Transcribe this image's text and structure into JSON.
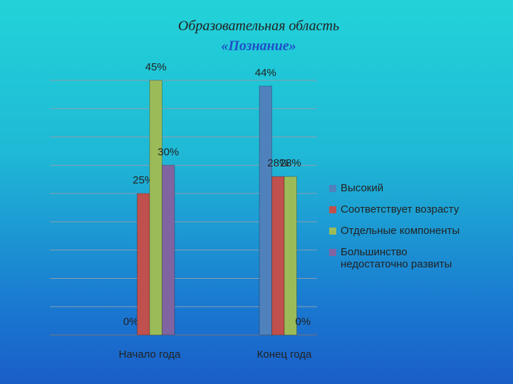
{
  "chart_data": {
    "type": "bar",
    "title": "Образовательная область",
    "subtitle": "«Познание»",
    "categories": [
      "Начало года",
      "Конец года"
    ],
    "series": [
      {
        "name": "Высокий",
        "color": "#4f81bd",
        "values": [
          0,
          44
        ],
        "value_labels": [
          "0%",
          "44%"
        ]
      },
      {
        "name": "Соответствует возрасту",
        "color": "#c0504d",
        "values": [
          25,
          28
        ],
        "value_labels": [
          "25%",
          "28%"
        ]
      },
      {
        "name": "Отдельные компоненты",
        "color": "#9bbb59",
        "values": [
          45,
          28
        ],
        "value_labels": [
          "45%",
          "28%"
        ]
      },
      {
        "name": "Большинство недостаточно развиты",
        "color": "#8064a2",
        "values": [
          30,
          0
        ],
        "value_labels": [
          "30%",
          "0%"
        ]
      }
    ],
    "ylim": [
      0,
      45
    ],
    "yticks": [
      0,
      5,
      10,
      15,
      20,
      25,
      30,
      35,
      40,
      45
    ],
    "grid": true,
    "legend": "right"
  }
}
